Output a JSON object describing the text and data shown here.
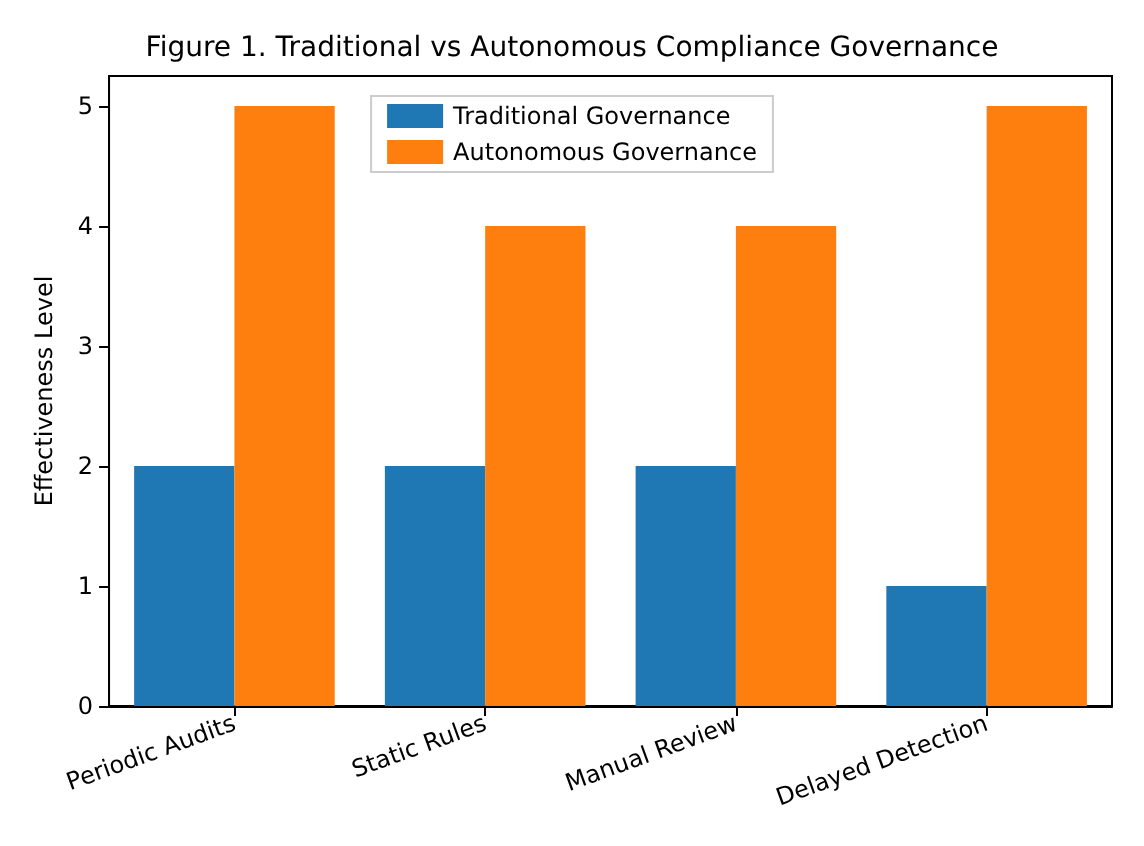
{
  "chart_data": {
    "type": "bar",
    "title": "Figure 1. Traditional vs Autonomous Compliance Governance",
    "ylabel": "Effectiveness Level",
    "categories": [
      "Periodic Audits",
      "Static Rules",
      "Manual Review",
      "Delayed Detection"
    ],
    "series": [
      {
        "name": "Traditional Governance",
        "color": "#1f77b4",
        "values": [
          2,
          2,
          2,
          1
        ]
      },
      {
        "name": "Autonomous Governance",
        "color": "#ff7f0e",
        "values": [
          5,
          4,
          4,
          5
        ]
      }
    ],
    "ylim": [
      0,
      5.25
    ],
    "yticks": [
      0,
      1,
      2,
      3,
      4,
      5
    ],
    "grid": false,
    "legend": "top"
  }
}
